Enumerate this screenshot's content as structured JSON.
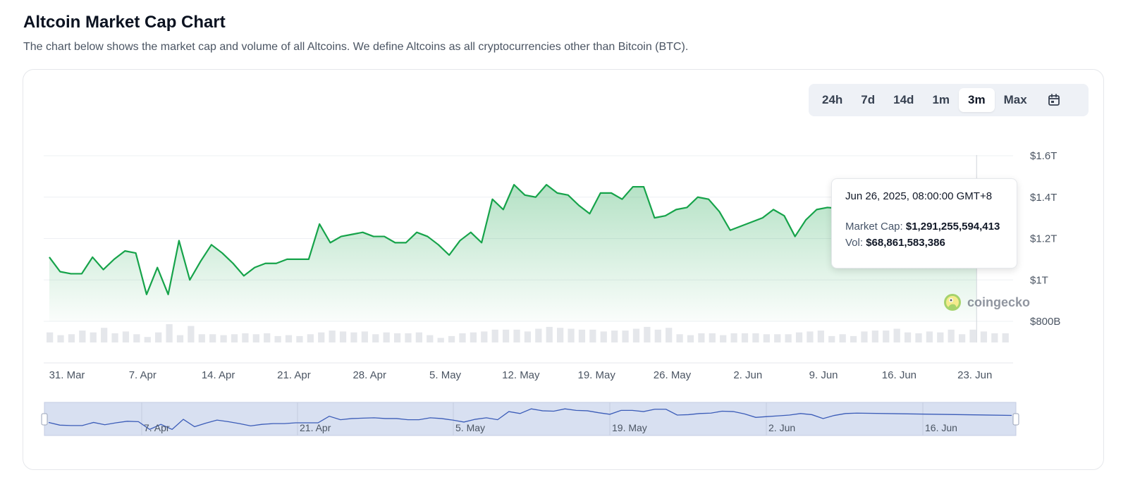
{
  "header": {
    "title": "Altcoin Market Cap Chart",
    "description": "The chart below shows the market cap and volume of all Altcoins. We define Altcoins as all cryptocurrencies other than Bitcoin (BTC)."
  },
  "range_buttons": [
    {
      "label": "24h",
      "active": false
    },
    {
      "label": "7d",
      "active": false
    },
    {
      "label": "14d",
      "active": false
    },
    {
      "label": "1m",
      "active": false
    },
    {
      "label": "3m",
      "active": true
    },
    {
      "label": "Max",
      "active": false
    }
  ],
  "tooltip": {
    "date": "Jun 26, 2025, 08:00:00 GMT+8",
    "market_cap_label": "Market Cap:",
    "market_cap_value": "$1,291,255,594,413",
    "vol_label": "Vol:",
    "vol_value": "$68,861,583,386"
  },
  "watermark": {
    "text": "coingecko"
  },
  "navigator": {
    "labels": [
      "7. Apr",
      "21. Apr",
      "5. May",
      "19. May",
      "2. Jun",
      "16. Jun"
    ]
  },
  "colors": {
    "line": "#16a34a",
    "fill_top": "#16a34a",
    "volume": "#e5e7eb",
    "navigator_bg": "#d8e0f1",
    "navigator_line": "#3b5cb8"
  },
  "chart_data": {
    "type": "area",
    "y_ticks": [
      "$1.6T",
      "$1.4T",
      "$1.2T",
      "$1T",
      "$800B"
    ],
    "y_tick_values": [
      1.6,
      1.4,
      1.2,
      1.0,
      0.8
    ],
    "ylim": [
      0.8,
      1.6
    ],
    "y_unit": "T USD",
    "x_ticks": [
      "31. Mar",
      "7. Apr",
      "14. Apr",
      "21. Apr",
      "28. Apr",
      "5. May",
      "12. May",
      "19. May",
      "26. May",
      "2. Jun",
      "9. Jun",
      "16. Jun",
      "23. Jun"
    ],
    "x_tick_days": [
      0,
      7,
      14,
      21,
      28,
      35,
      42,
      49,
      56,
      63,
      70,
      77,
      84
    ],
    "market_cap": {
      "x_days": [
        -0.2,
        0.8,
        1.8,
        2.8,
        3.8,
        4.8,
        5.8,
        6.8,
        7.8,
        8.8,
        9.8,
        10.8,
        11.8,
        12.8,
        13.8,
        14.8,
        15.8,
        16.8,
        17.8,
        18.8,
        19.8,
        20.8,
        21.8,
        22.8,
        23.8,
        24.8,
        25.8,
        26.8,
        27.8,
        28.8,
        29.8,
        30.8,
        31.8,
        32.8,
        33.8,
        34.8,
        35.8,
        36.8,
        37.8,
        38.8,
        39.8,
        40.8,
        41.8,
        42.8,
        43.8,
        44.8,
        45.8,
        46.8,
        47.8,
        48.8,
        49.8,
        50.8,
        51.8,
        52.8,
        53.8,
        54.8,
        55.8,
        56.8,
        57.8,
        58.8,
        59.8,
        60.8,
        61.8,
        62.8,
        63.8,
        64.8,
        65.8,
        66.8,
        67.8,
        68.8,
        69.8,
        70.8,
        71.8
      ],
      "values": [
        1.11,
        1.04,
        1.03,
        1.03,
        1.11,
        1.05,
        1.1,
        1.14,
        1.13,
        0.93,
        1.06,
        0.93,
        1.19,
        1.0,
        1.09,
        1.17,
        1.13,
        1.08,
        1.02,
        1.06,
        1.08,
        1.08,
        1.1,
        1.1,
        1.1,
        1.27,
        1.18,
        1.21,
        1.22,
        1.23,
        1.21,
        1.21,
        1.18,
        1.18,
        1.23,
        1.21,
        1.17,
        1.12,
        1.19,
        1.23,
        1.18,
        1.39,
        1.34,
        1.46,
        1.41,
        1.4,
        1.46,
        1.42,
        1.41,
        1.36,
        1.32,
        1.42,
        1.42,
        1.39,
        1.45,
        1.45,
        1.3,
        1.31,
        1.34,
        1.35,
        1.4,
        1.39,
        1.33,
        1.24,
        1.26,
        1.28,
        1.3,
        1.34,
        1.31,
        1.21,
        1.29,
        1.34,
        1.35
      ]
    },
    "last_point": {
      "x_day": 85.6,
      "value": 1.291
    },
    "volume_relative": [
      0.55,
      0.4,
      0.45,
      0.65,
      0.55,
      0.8,
      0.5,
      0.6,
      0.45,
      0.3,
      0.55,
      1.0,
      0.4,
      0.9,
      0.45,
      0.45,
      0.4,
      0.45,
      0.5,
      0.45,
      0.5,
      0.35,
      0.4,
      0.35,
      0.45,
      0.55,
      0.65,
      0.6,
      0.55,
      0.6,
      0.45,
      0.55,
      0.5,
      0.5,
      0.55,
      0.4,
      0.25,
      0.35,
      0.5,
      0.55,
      0.6,
      0.7,
      0.7,
      0.7,
      0.6,
      0.75,
      0.85,
      0.8,
      0.75,
      0.7,
      0.7,
      0.6,
      0.65,
      0.65,
      0.75,
      0.85,
      0.7,
      0.8,
      0.45,
      0.4,
      0.5,
      0.5,
      0.4,
      0.5,
      0.5,
      0.5,
      0.45,
      0.45,
      0.45,
      0.55,
      0.6,
      0.65,
      0.35,
      0.45,
      0.35,
      0.6,
      0.65,
      0.65,
      0.75,
      0.55,
      0.5,
      0.6,
      0.55,
      0.7,
      0.45,
      0.7,
      0.6,
      0.5,
      0.5
    ],
    "grid": true,
    "legend": "none"
  }
}
